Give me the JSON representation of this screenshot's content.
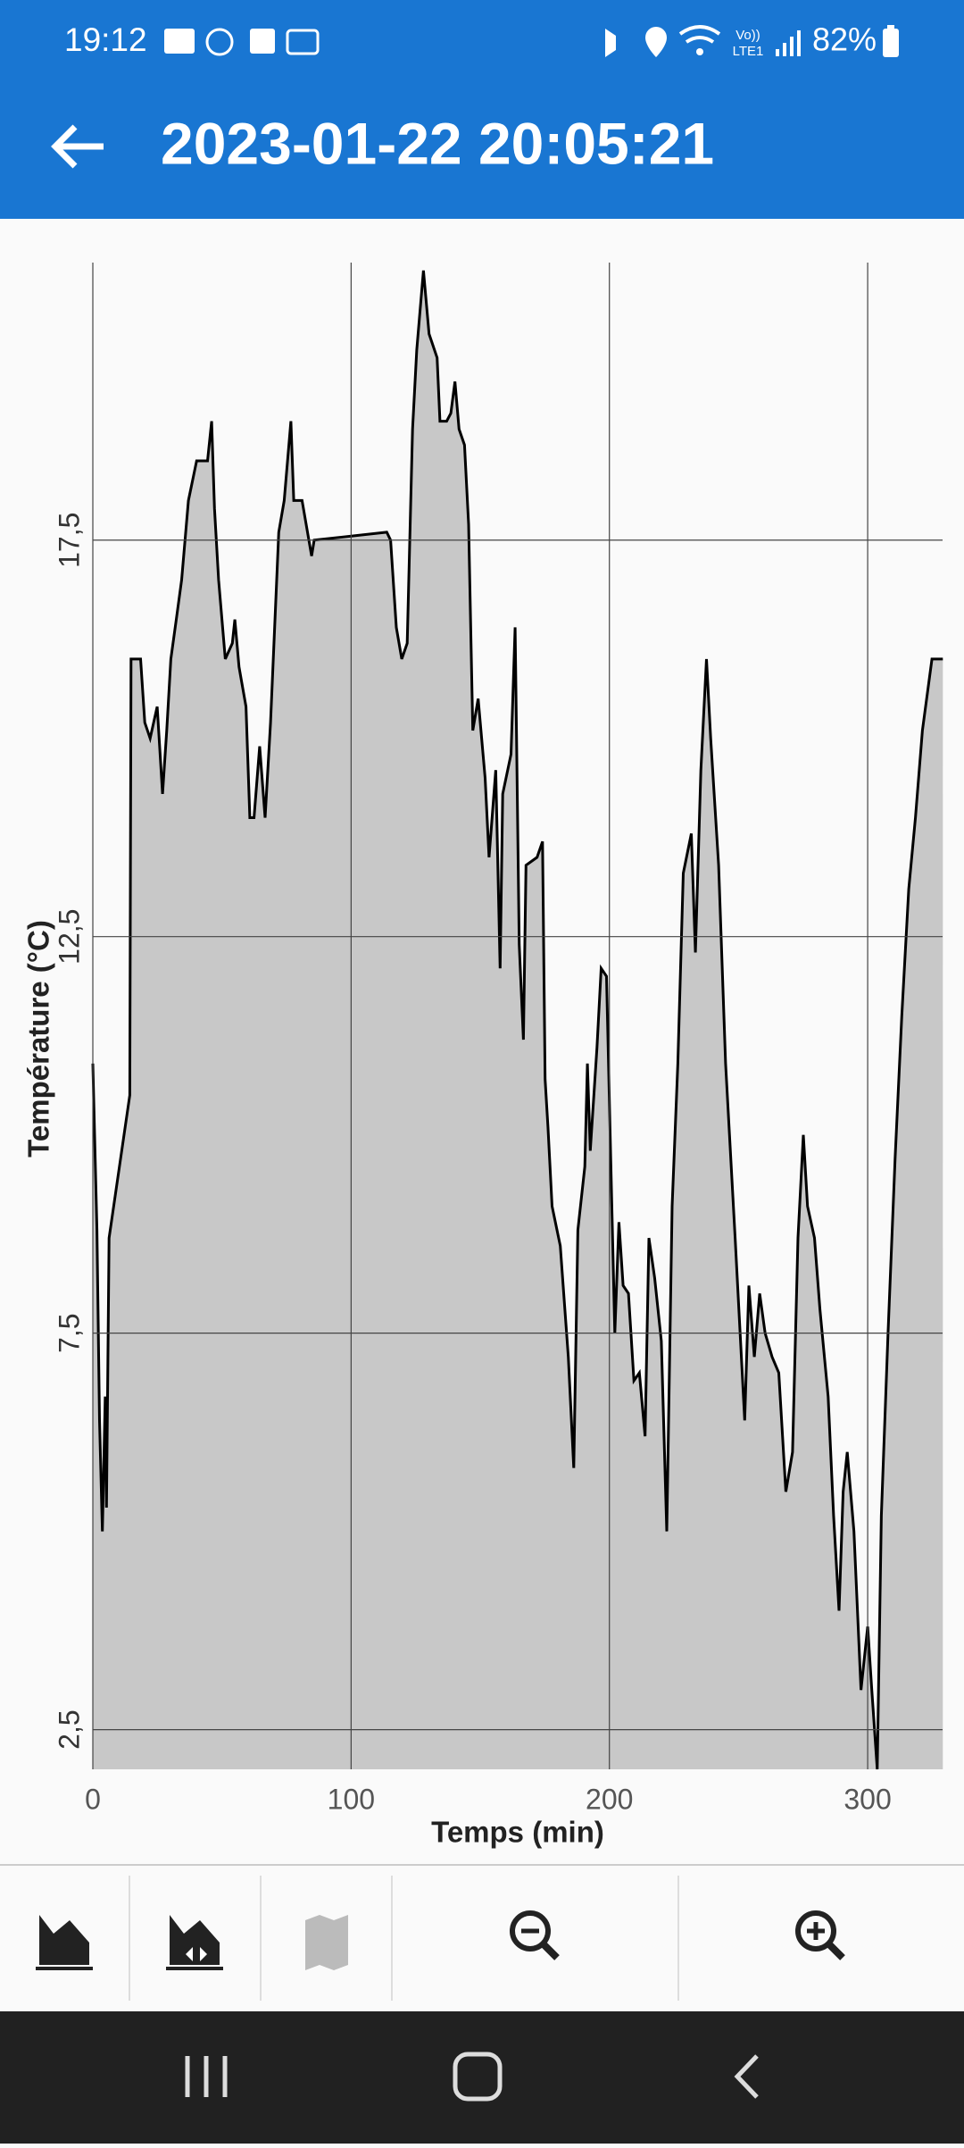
{
  "status_bar": {
    "time": "19:12",
    "network": [
      "Vo))",
      "LTE1"
    ],
    "battery": "82%"
  },
  "app_bar": {
    "title": "2023-01-22 20:05:21"
  },
  "chart_data": {
    "type": "area",
    "xlabel": "Temps (min)",
    "ylabel": "Température (°C)",
    "x": [
      0,
      1.6,
      2.6,
      3.7,
      4.8,
      5.3,
      6.3,
      14.3,
      14.8,
      18.5,
      20.1,
      22.2,
      24.9,
      27,
      28.6,
      30.2,
      32.3,
      34.4,
      37,
      40.2,
      44.4,
      46,
      47.1,
      48.7,
      51.3,
      54,
      55,
      56.6,
      59.3,
      60.8,
      62.4,
      64.6,
      66.7,
      68.8,
      72,
      74.1,
      76.7,
      77.8,
      81,
      84.7,
      85.7,
      113.8,
      115.3,
      117.5,
      119.6,
      121.7,
      123.8,
      125.4,
      128,
      130.2,
      133.3,
      134.4,
      137,
      138.6,
      140.2,
      141.8,
      143.9,
      145.5,
      147.1,
      149.2,
      151.9,
      153.4,
      156,
      157.7,
      158.7,
      161.9,
      163.5,
      165.1,
      166.7,
      167.7,
      172,
      174.1,
      175.1,
      176.2,
      177.8,
      181,
      184.1,
      186.2,
      187.8,
      190.5,
      191.5,
      192.6,
      195.2,
      196.8,
      198.9,
      200.5,
      202.1,
      203.7,
      205.3,
      207.4,
      209.5,
      211.6,
      213.8,
      215.3,
      217.5,
      220.1,
      222.2,
      224.3,
      226.5,
      228.6,
      231.7,
      233.3,
      235.4,
      237.6,
      239.2,
      242.3,
      245,
      248.7,
      252.4,
      254,
      256.1,
      258.2,
      260.3,
      263,
      265.6,
      268.3,
      270.9,
      273,
      275.1,
      276.7,
      279.4,
      281.5,
      284.7,
      286.8,
      288.9,
      290.5,
      292.1,
      294.7,
      297.4,
      300,
      301.6,
      303.7,
      305.3,
      307.9,
      310.6,
      313.2,
      315.9,
      318.5,
      321.2,
      324.9,
      329.1
    ],
    "series": [
      {
        "color": "#000000",
        "fill": "#c8c8c8",
        "values": [
          10.9,
          8.8,
          6.4,
          5.0,
          6.7,
          5.3,
          8.7,
          10.5,
          16.0,
          16.0,
          15.2,
          15.0,
          15.4,
          14.3,
          15.1,
          16.0,
          16.5,
          17.0,
          18.0,
          18.5,
          18.5,
          19.0,
          17.9,
          17.0,
          16.0,
          16.2,
          16.5,
          15.9,
          15.4,
          14.0,
          14.0,
          14.9,
          14.0,
          15.2,
          17.6,
          18.0,
          19.0,
          18.0,
          18.0,
          17.3,
          17.5,
          17.6,
          17.5,
          16.4,
          16.0,
          16.2,
          18.9,
          19.9,
          20.9,
          20.1,
          19.8,
          19.0,
          19.0,
          19.1,
          19.5,
          18.9,
          18.7,
          17.7,
          15.1,
          15.5,
          14.5,
          13.5,
          14.6,
          12.1,
          14.3,
          14.8,
          16.4,
          12.4,
          11.2,
          13.4,
          13.5,
          13.7,
          10.7,
          10.1,
          9.1,
          8.6,
          7.2,
          5.8,
          8.8,
          9.6,
          10.9,
          9.8,
          11.1,
          12.1,
          12.0,
          9.7,
          7.5,
          8.9,
          8.1,
          8.0,
          6.9,
          7.0,
          6.2,
          8.7,
          8.2,
          7.4,
          5.0,
          9.1,
          10.9,
          13.3,
          13.8,
          12.3,
          14.6,
          16.0,
          15.0,
          13.4,
          10.9,
          8.7,
          6.4,
          8.1,
          7.2,
          8.0,
          7.5,
          7.2,
          7.0,
          5.5,
          6.0,
          8.7,
          10.0,
          9.1,
          8.7,
          7.8,
          6.7,
          5.2,
          4.0,
          5.5,
          6.0,
          5.0,
          3.0,
          3.8,
          3.0,
          2.0,
          5.2,
          7.5,
          9.7,
          11.5,
          13.1,
          14.0,
          15.1,
          16.0,
          16.0
        ]
      }
    ],
    "xlim": [
      0,
      329
    ],
    "ylim": [
      2,
      21
    ],
    "xticks": [
      0,
      100,
      200,
      300
    ],
    "yticks": [
      {
        "value": 2.5,
        "label": "2,5"
      },
      {
        "value": 7.5,
        "label": "7,5"
      },
      {
        "value": 12.5,
        "label": "12,5"
      },
      {
        "value": 17.5,
        "label": "17,5"
      }
    ],
    "grid": true
  }
}
